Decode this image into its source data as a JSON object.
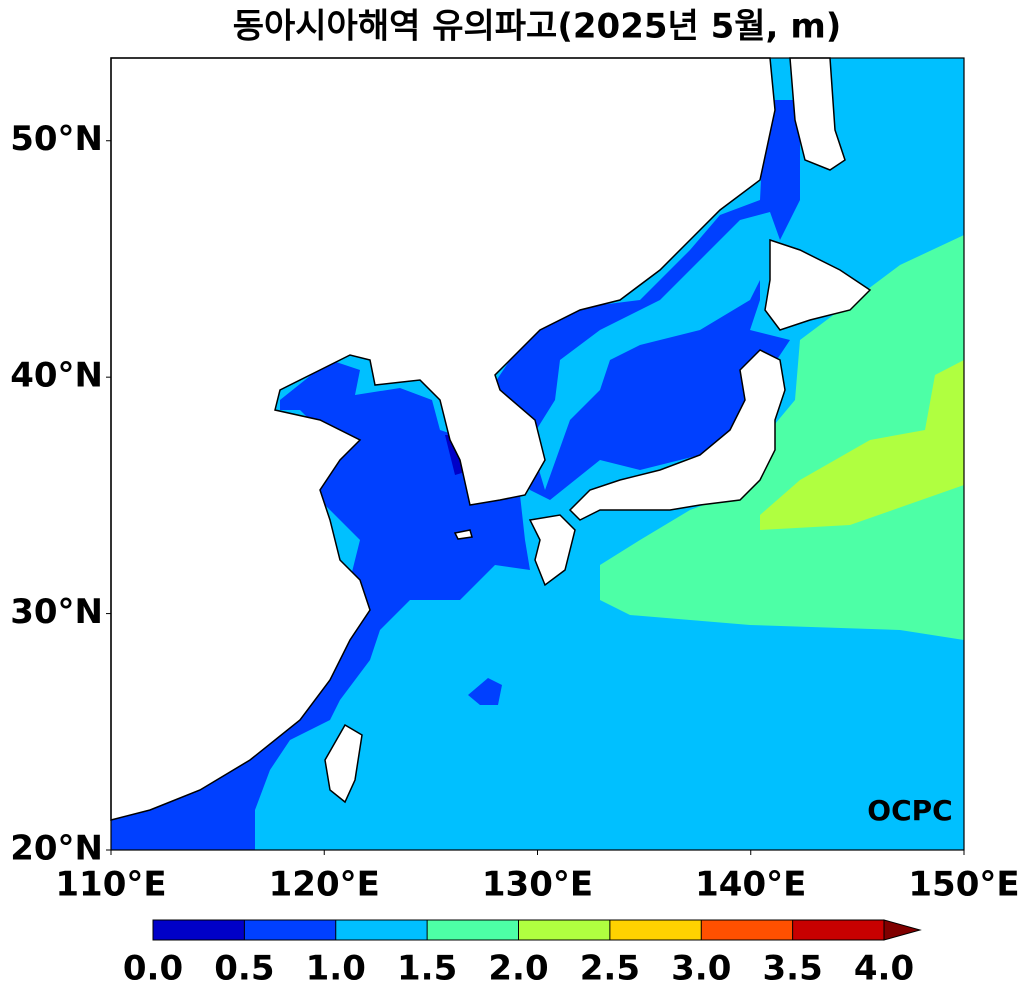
{
  "chart_data": {
    "type": "map",
    "title": "동아시아해역 유의파고(2025년 5월, m)",
    "xlim": [
      110,
      150
    ],
    "ylim": [
      20,
      53.5
    ],
    "xticks": [
      {
        "value": 110,
        "label": "110°E"
      },
      {
        "value": 120,
        "label": "120°E"
      },
      {
        "value": 130,
        "label": "130°E"
      },
      {
        "value": 140,
        "label": "140°E"
      },
      {
        "value": 150,
        "label": "150°E"
      }
    ],
    "yticks": [
      {
        "value": 20,
        "label": "20°N"
      },
      {
        "value": 30,
        "label": "30°N"
      },
      {
        "value": 40,
        "label": "40°N"
      },
      {
        "value": 50,
        "label": "50°N"
      }
    ],
    "colorbar": {
      "ticks": [
        {
          "value": 0,
          "label": "0.0"
        },
        {
          "value": 0.5,
          "label": "0.5"
        },
        {
          "value": 1,
          "label": "1.0"
        },
        {
          "value": 1.5,
          "label": "1.5"
        },
        {
          "value": 2,
          "label": "2.0"
        },
        {
          "value": 2.5,
          "label": "2.5"
        },
        {
          "value": 3,
          "label": "3.0"
        },
        {
          "value": 3.5,
          "label": "3.5"
        },
        {
          "value": 4,
          "label": "4.0"
        }
      ],
      "colors": [
        "#0000c8",
        "#0040ff",
        "#00bfff",
        "#4dffa6",
        "#b0ff40",
        "#ffd200",
        "#ff5000",
        "#c80000",
        "#800000"
      ],
      "extend": "max"
    },
    "logo": "OCPC"
  }
}
